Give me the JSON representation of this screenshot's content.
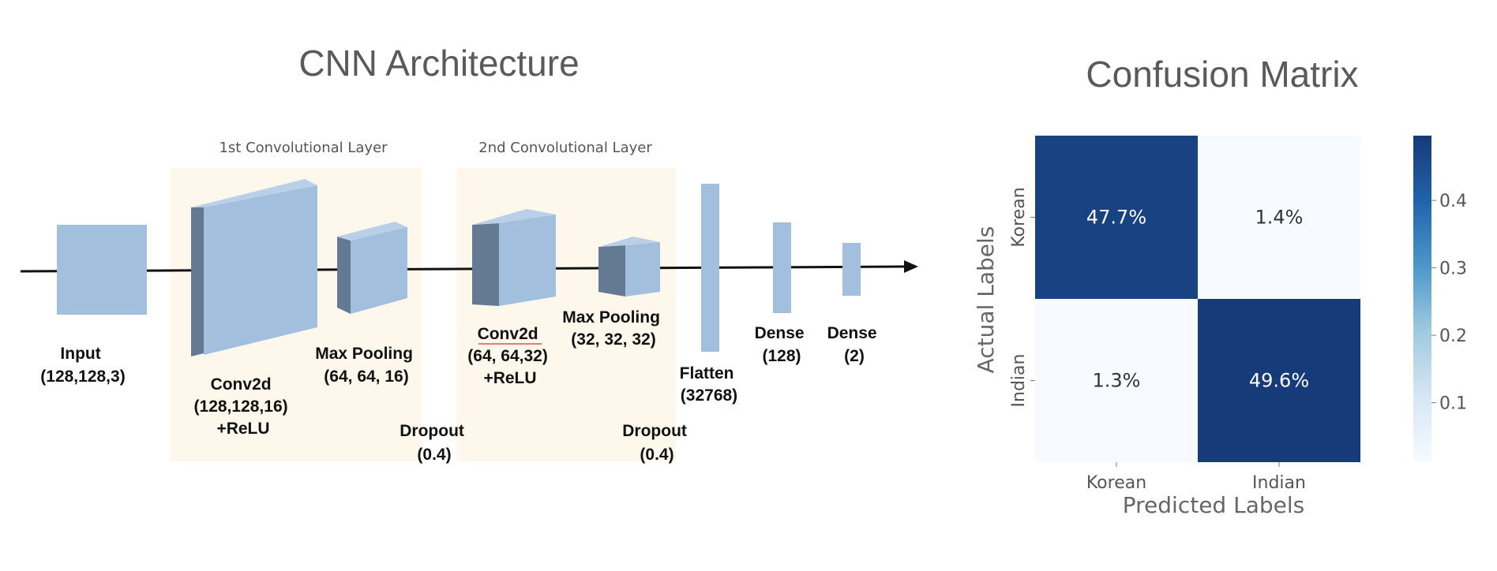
{
  "diagram": {
    "title": "CNN Architecture",
    "sections": [
      {
        "id": "conv1",
        "label": "1st Convolutional Layer"
      },
      {
        "id": "conv2",
        "label": "2nd Convolutional Layer"
      }
    ],
    "layers": [
      {
        "id": "input",
        "lines": [
          "Input",
          "(128,128,3)"
        ]
      },
      {
        "id": "conv2d-1",
        "lines": [
          "Conv2d",
          "(128,128,16)",
          "+ReLU"
        ]
      },
      {
        "id": "maxpool-1",
        "lines": [
          "Max Pooling",
          "(64, 64, 16)"
        ]
      },
      {
        "id": "dropout-1",
        "lines": [
          "Dropout",
          "(0.4)"
        ]
      },
      {
        "id": "conv2d-2",
        "lines": [
          "Conv2d",
          "(64, 64,32)",
          "+ReLU"
        ]
      },
      {
        "id": "maxpool-2",
        "lines": [
          "Max Pooling",
          "(32, 32, 32)"
        ]
      },
      {
        "id": "dropout-2",
        "lines": [
          "Dropout",
          "(0.4)"
        ]
      },
      {
        "id": "flatten",
        "lines": [
          "Flatten",
          "(32768)"
        ]
      },
      {
        "id": "dense-1",
        "lines": [
          "Dense",
          "(128)"
        ]
      },
      {
        "id": "dense-2",
        "lines": [
          "Dense",
          "(2)"
        ]
      }
    ],
    "colors": {
      "block_front": "#a3bfde",
      "block_side": "#647a93",
      "section_bg": "#fdf7ec",
      "arrow": "#111111",
      "underline": "#d9534f"
    }
  },
  "chart_data": {
    "type": "heatmap",
    "title": "Confusion Matrix",
    "xlabel": "Predicted Labels",
    "ylabel": "Actual Labels",
    "x_categories": [
      "Korean",
      "Indian"
    ],
    "y_categories": [
      "Korean",
      "Indian"
    ],
    "values": [
      [
        0.477,
        0.014
      ],
      [
        0.013,
        0.496
      ]
    ],
    "cell_labels": [
      [
        "47.7%",
        "1.4%"
      ],
      [
        "1.3%",
        "49.6%"
      ]
    ],
    "colorbar": {
      "ticks": [
        0.1,
        0.2,
        0.3,
        0.4
      ],
      "tick_labels": [
        "0.1",
        "0.2",
        "0.3",
        "0.4"
      ],
      "min": 0.013,
      "max": 0.496
    },
    "colormap": "Blues"
  }
}
